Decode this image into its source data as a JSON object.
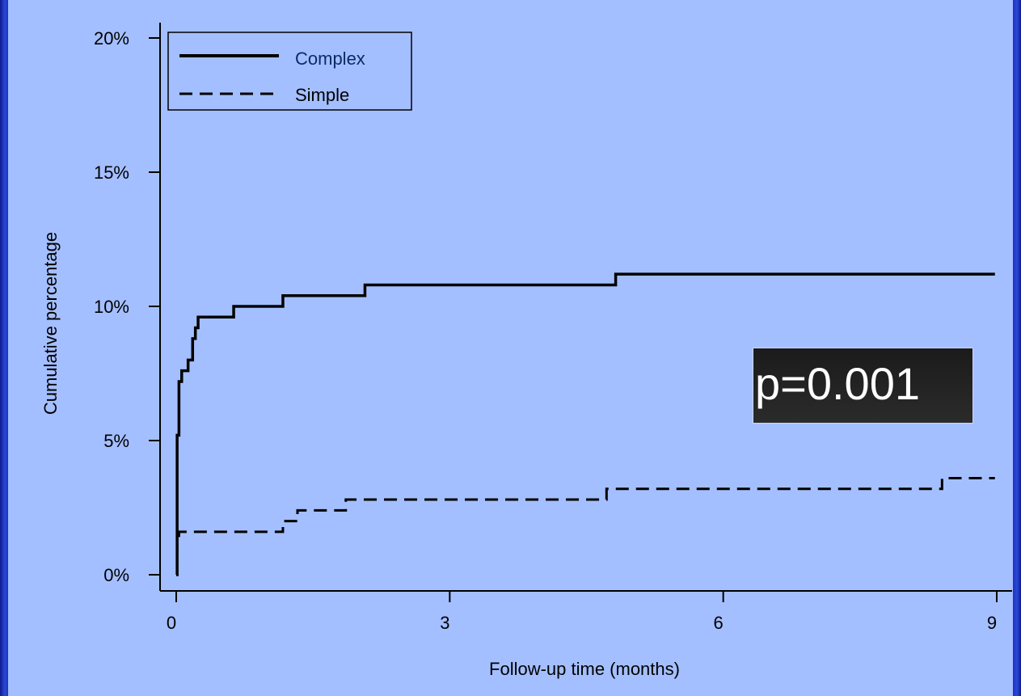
{
  "chart_data": {
    "type": "line",
    "step": true,
    "title": "",
    "xlabel": "Follow-up time (months)",
    "ylabel": "Cumulative percentage",
    "xlim": [
      0,
      9
    ],
    "ylim": [
      0,
      20
    ],
    "x_ticks": [
      0,
      3,
      6,
      9
    ],
    "x_tick_labels": [
      "0",
      "3",
      "6",
      "9"
    ],
    "y_ticks": [
      0,
      5,
      10,
      15,
      20
    ],
    "y_tick_labels": [
      "0%",
      "5%",
      "10%",
      "15%",
      "20%"
    ],
    "grid": false,
    "legend_position": "top-left",
    "series": [
      {
        "name": "Complex",
        "line_style": "solid",
        "color": "#000000",
        "x": [
          0,
          0.01,
          0.03,
          0.06,
          0.13,
          0.18,
          0.21,
          0.24,
          0.27,
          0.63,
          1.17,
          2.07,
          4.82,
          8.98
        ],
        "y": [
          0,
          5.2,
          7.2,
          7.6,
          8.0,
          8.8,
          9.2,
          9.6,
          9.6,
          10.0,
          10.4,
          10.8,
          11.2,
          11.2
        ]
      },
      {
        "name": "Simple",
        "line_style": "dashed",
        "color": "#000000",
        "x": [
          0,
          0.01,
          0.03,
          1.17,
          1.33,
          1.86,
          4.72,
          8.4,
          8.98
        ],
        "y": [
          0,
          1.2,
          1.6,
          2.0,
          2.4,
          2.8,
          3.2,
          3.6,
          3.6
        ]
      }
    ],
    "annotation": {
      "text": "p=0.001"
    }
  },
  "colors": {
    "background": "#a4bfff",
    "frame": "#1c34c0",
    "complex_legend_text": "#0d2a66",
    "annotation_box": "#222222",
    "annotation_text": "#ffffff"
  }
}
